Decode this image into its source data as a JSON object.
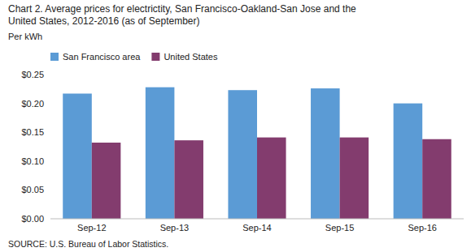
{
  "chart_data": {
    "type": "bar",
    "title": "Chart 2. Average prices for electrictity, San Francisco-Oakland-San Jose and the\nUnited States, 2012-2016  (as of September)",
    "y_label": "Per kWh",
    "source": "SOURCE: U.S. Bureau of Labor Statistics.",
    "categories": [
      "Sep-12",
      "Sep-13",
      "Sep-14",
      "Sep-15",
      "Sep-16"
    ],
    "series": [
      {
        "name": "San Francisco area",
        "color": "#5B9BD5",
        "values": [
          0.217,
          0.228,
          0.223,
          0.226,
          0.2
        ]
      },
      {
        "name": "United States",
        "color": "#833C6E",
        "values": [
          0.132,
          0.136,
          0.141,
          0.141,
          0.138
        ]
      }
    ],
    "ylim": [
      0,
      0.25
    ],
    "yticks": [
      {
        "value": 0.0,
        "label": "$0.00"
      },
      {
        "value": 0.05,
        "label": "$0.05"
      },
      {
        "value": 0.1,
        "label": "$0.10"
      },
      {
        "value": 0.15,
        "label": "$0.15"
      },
      {
        "value": 0.2,
        "label": "$0.20"
      },
      {
        "value": 0.25,
        "label": "$0.25"
      }
    ],
    "grid": false,
    "legend": "upper left"
  }
}
